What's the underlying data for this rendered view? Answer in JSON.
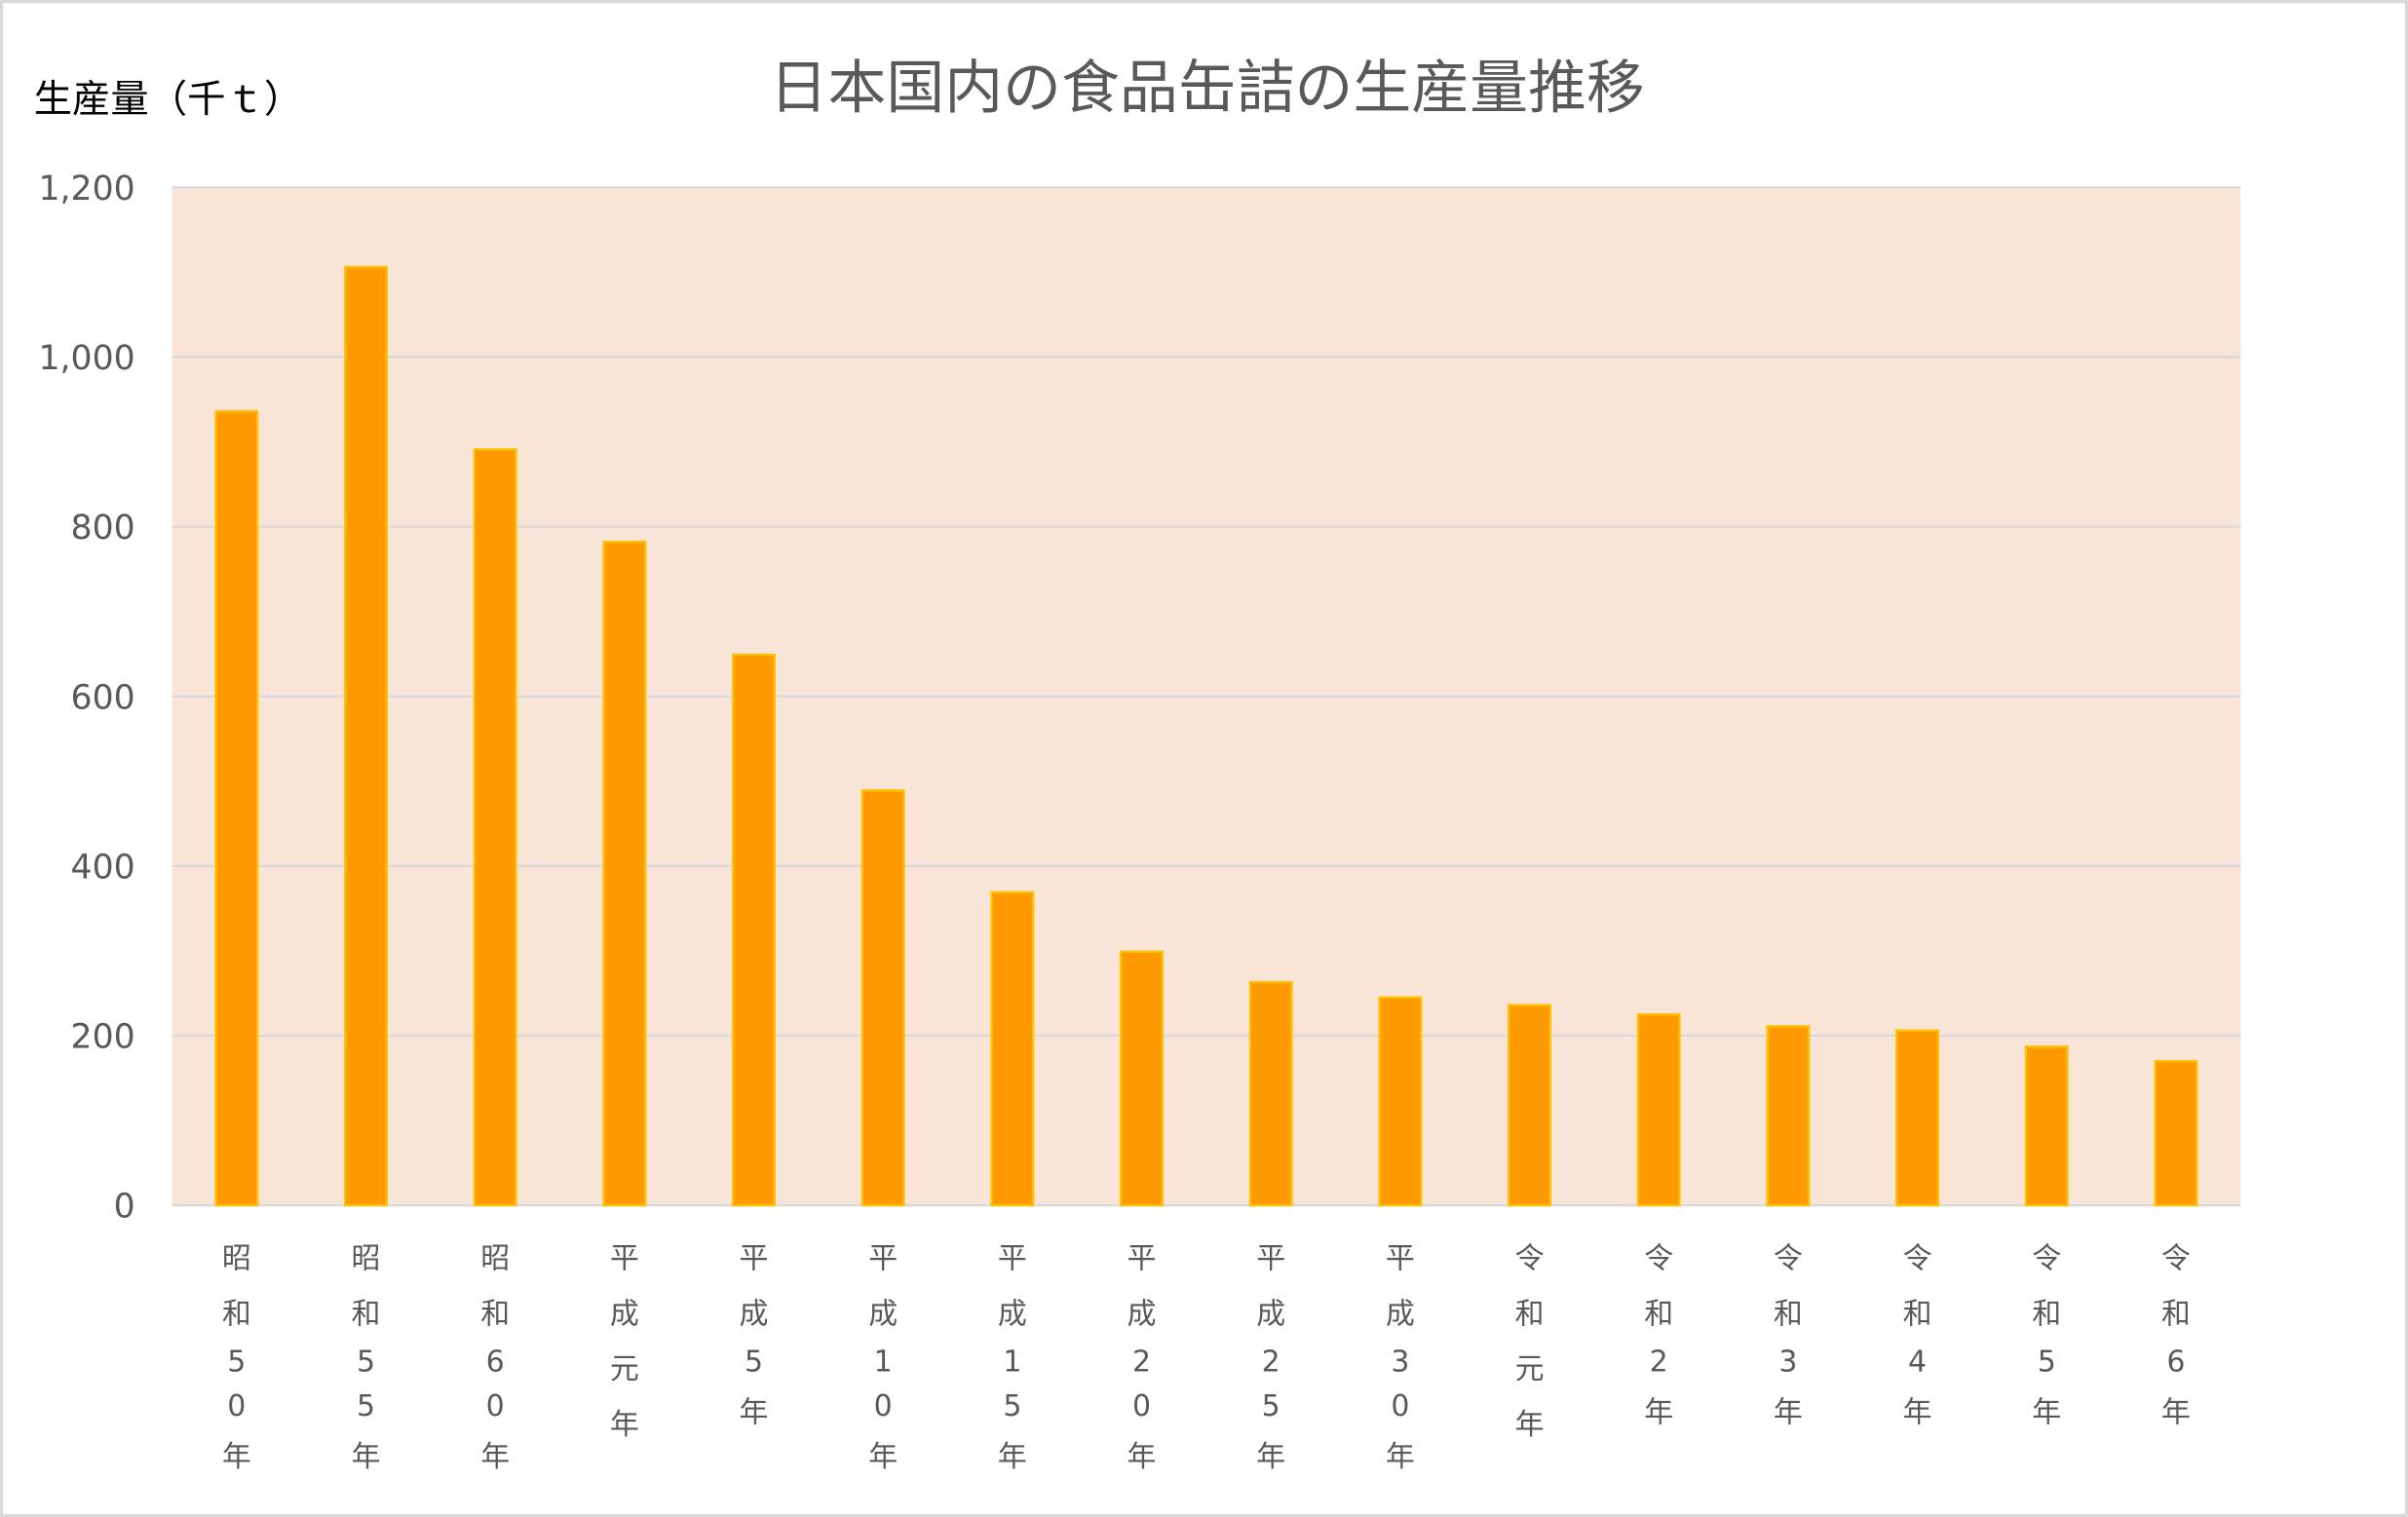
{
  "chart_data": {
    "type": "bar",
    "title": "日本国内の食品缶詰の生産量推移",
    "ylabel": "生産量（千ｔ）",
    "xlabel": "",
    "ylim": [
      0,
      1200
    ],
    "yticks": [
      0,
      200,
      400,
      600,
      800,
      1000,
      1200
    ],
    "ytick_labels": [
      "0",
      "200",
      "400",
      "600",
      "800",
      "1,000",
      "1,200"
    ],
    "grid": true,
    "legend": "none",
    "categories": [
      "昭和50年",
      "昭和55年",
      "昭和60年",
      "平成元年",
      "平成5年",
      "平成10年",
      "平成15年",
      "平成20年",
      "平成25年",
      "平成30年",
      "令和元年",
      "令和2年",
      "令和3年",
      "令和4年",
      "令和5年",
      "令和6年"
    ],
    "values": [
      936,
      1106,
      891,
      782,
      649,
      489,
      369,
      299,
      263,
      245,
      236,
      225,
      211,
      206,
      187,
      170
    ],
    "colors": {
      "bar_fill": "#FF9900",
      "bar_stroke": "#FFC000",
      "plot_bg": "#F9E5D8",
      "grid": "#D9D9D9"
    }
  }
}
